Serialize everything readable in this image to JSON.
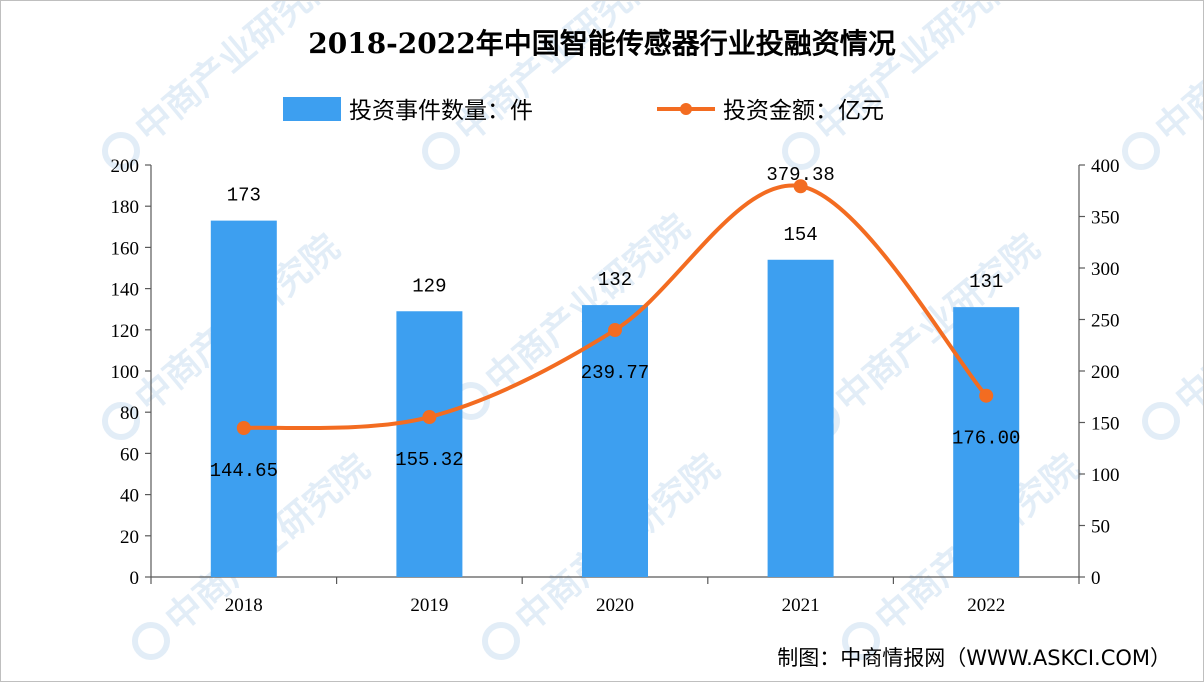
{
  "chart_data": {
    "type": "bar+line",
    "title": "2018-2022年中国智能传感器行业投融资情况",
    "categories": [
      "2018",
      "2019",
      "2020",
      "2021",
      "2022"
    ],
    "series": [
      {
        "name": "投资事件数量：件",
        "type": "bar",
        "axis": "left",
        "color": "#3d9ff0",
        "values": [
          173,
          129,
          132,
          154,
          131
        ],
        "labels": [
          "173",
          "129",
          "132",
          "154",
          "131"
        ]
      },
      {
        "name": "投资金额：亿元",
        "type": "line",
        "axis": "right",
        "color": "#f36c21",
        "values": [
          144.65,
          155.32,
          239.77,
          379.38,
          176.0
        ],
        "labels": [
          "144.65",
          "155.32",
          "239.77",
          "379.38",
          "176.00"
        ]
      }
    ],
    "y_left": {
      "min": 0,
      "max": 200,
      "step": 20,
      "ticks": [
        "0",
        "20",
        "40",
        "60",
        "80",
        "100",
        "120",
        "140",
        "160",
        "180",
        "200"
      ]
    },
    "y_right": {
      "min": 0,
      "max": 400,
      "step": 50,
      "ticks": [
        "0",
        "50",
        "100",
        "150",
        "200",
        "250",
        "300",
        "350",
        "400"
      ]
    },
    "legend_position": "top"
  },
  "source": "制图：中商情报网（WWW.ASKCI.COM）",
  "watermark": "中商产业研究院"
}
